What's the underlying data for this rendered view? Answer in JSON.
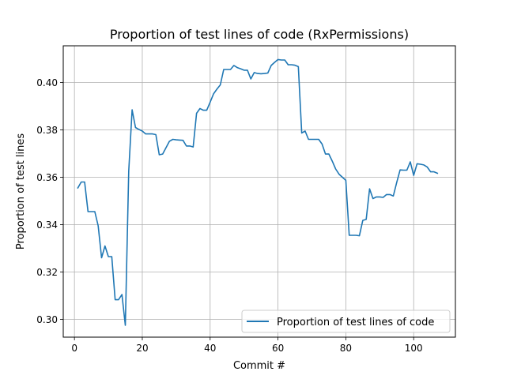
{
  "chart_data": {
    "type": "line",
    "title": "Proportion of test lines of code (RxPermissions)",
    "xlabel": "Commit #",
    "ylabel": "Proportion of test lines",
    "xlim": [
      -3.3,
      112.3
    ],
    "ylim": [
      0.2925,
      0.4155
    ],
    "xticks": [
      0,
      20,
      40,
      60,
      80,
      100
    ],
    "xtick_labels": [
      "0",
      "20",
      "40",
      "60",
      "80",
      "100"
    ],
    "yticks": [
      0.3,
      0.32,
      0.34,
      0.36,
      0.38,
      0.4
    ],
    "ytick_labels": [
      "0.30",
      "0.32",
      "0.34",
      "0.36",
      "0.38",
      "0.40"
    ],
    "grid": true,
    "legend_position": "lower-right",
    "line_color": "#1f77b4",
    "series": [
      {
        "name": "Proportion of test lines of code",
        "x": [
          1,
          2,
          3,
          4,
          5,
          6,
          7,
          8,
          9,
          10,
          11,
          12,
          13,
          14,
          15,
          16,
          17,
          18,
          19,
          20,
          21,
          22,
          23,
          24,
          25,
          26,
          27,
          28,
          29,
          30,
          31,
          32,
          33,
          34,
          35,
          36,
          37,
          38,
          39,
          40,
          41,
          42,
          43,
          44,
          45,
          46,
          47,
          48,
          49,
          50,
          51,
          52,
          53,
          54,
          55,
          56,
          57,
          58,
          59,
          60,
          61,
          62,
          63,
          64,
          65,
          66,
          67,
          68,
          69,
          70,
          71,
          72,
          73,
          74,
          75,
          76,
          77,
          78,
          79,
          80,
          81,
          82,
          83,
          84,
          85,
          86,
          87,
          88,
          89,
          90,
          91,
          92,
          93,
          94,
          95,
          96,
          97,
          98,
          99,
          100,
          101,
          102,
          103,
          104,
          105,
          106,
          107
        ],
        "y": [
          0.3555,
          0.358,
          0.358,
          0.3455,
          0.3455,
          0.3455,
          0.3395,
          0.326,
          0.331,
          0.3265,
          0.3265,
          0.3083,
          0.3083,
          0.3105,
          0.2975,
          0.3625,
          0.3885,
          0.381,
          0.3802,
          0.3795,
          0.3783,
          0.3783,
          0.3783,
          0.378,
          0.3695,
          0.3698,
          0.3725,
          0.3752,
          0.376,
          0.3758,
          0.3757,
          0.3756,
          0.3732,
          0.3732,
          0.3728,
          0.387,
          0.389,
          0.3883,
          0.3883,
          0.3917,
          0.3952,
          0.3972,
          0.399,
          0.4055,
          0.4055,
          0.4055,
          0.4072,
          0.4063,
          0.4058,
          0.4052,
          0.4052,
          0.4015,
          0.4042,
          0.4038,
          0.4037,
          0.4038,
          0.404,
          0.4072,
          0.4085,
          0.4097,
          0.4095,
          0.4095,
          0.4075,
          0.4075,
          0.4073,
          0.4067,
          0.3787,
          0.3795,
          0.376,
          0.376,
          0.376,
          0.376,
          0.374,
          0.3698,
          0.3698,
          0.3668,
          0.3635,
          0.3613,
          0.36,
          0.3587,
          0.3355,
          0.3355,
          0.3355,
          0.3353,
          0.3418,
          0.3422,
          0.3551,
          0.351,
          0.3517,
          0.3517,
          0.3515,
          0.3527,
          0.3527,
          0.3521,
          0.3578,
          0.3631,
          0.363,
          0.363,
          0.3665,
          0.3608,
          0.3657,
          0.3655,
          0.3652,
          0.3643,
          0.3623,
          0.3623,
          0.3617
        ]
      }
    ]
  }
}
